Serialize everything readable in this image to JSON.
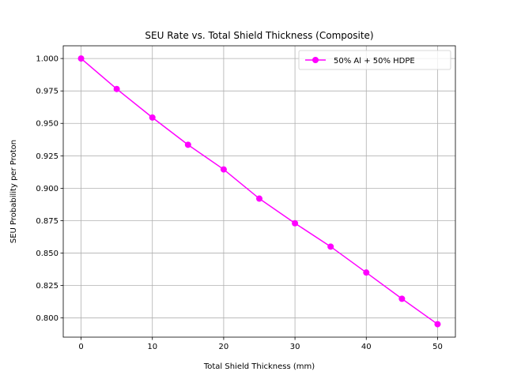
{
  "chart_data": {
    "type": "line",
    "title": "SEU Rate vs. Total Shield Thickness (Composite)",
    "xlabel": "Total Shield Thickness (mm)",
    "ylabel": "SEU Probability per Proton",
    "xlim": [
      -2.5,
      52.5
    ],
    "ylim": [
      0.7852,
      1.0098
    ],
    "x_ticks": [
      0,
      10,
      20,
      30,
      40,
      50
    ],
    "y_ticks": [
      0.8,
      0.825,
      0.85,
      0.875,
      0.9,
      0.925,
      0.95,
      0.975,
      1.0
    ],
    "y_tick_labels": [
      "0.800",
      "0.825",
      "0.850",
      "0.875",
      "0.900",
      "0.925",
      "0.950",
      "0.975",
      "1.000"
    ],
    "grid": true,
    "legend_position": "upper right",
    "series": [
      {
        "name": "50% Al + 50% HDPE",
        "color": "#ff00ff",
        "marker": "circle",
        "x": [
          0,
          5,
          10,
          15,
          20,
          25,
          30,
          35,
          40,
          45,
          50
        ],
        "y": [
          1.0,
          0.9765,
          0.9545,
          0.9335,
          0.9145,
          0.892,
          0.873,
          0.855,
          0.835,
          0.8148,
          0.7952
        ]
      }
    ]
  }
}
